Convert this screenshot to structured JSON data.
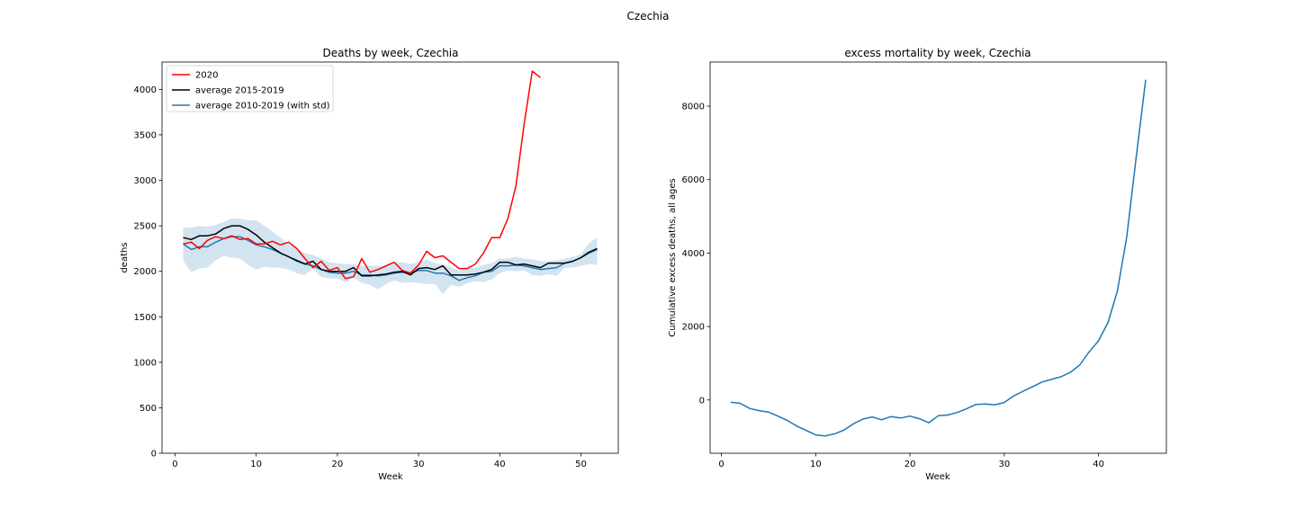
{
  "figure": {
    "suptitle": "Czechia"
  },
  "chart_data": [
    {
      "type": "line",
      "title": "Deaths by week, Czechia",
      "xlabel": "Week",
      "ylabel": "deaths",
      "xlim": [
        -1.6,
        54.6
      ],
      "ylim": [
        0,
        4300
      ],
      "xticks": [
        0,
        10,
        20,
        30,
        40,
        50
      ],
      "yticks": [
        0,
        500,
        1000,
        1500,
        2000,
        2500,
        3000,
        3500,
        4000
      ],
      "grid": false,
      "legend": {
        "position": "top-left",
        "entries": [
          "2020",
          "average 2015-2019",
          "average 2010-2019 (with std)"
        ]
      },
      "series": [
        {
          "name": "2020",
          "color": "#ff0000",
          "x": [
            1,
            2,
            3,
            4,
            5,
            6,
            7,
            8,
            9,
            10,
            11,
            12,
            13,
            14,
            15,
            16,
            17,
            18,
            19,
            20,
            21,
            22,
            23,
            24,
            25,
            26,
            27,
            28,
            29,
            30,
            31,
            32,
            33,
            34,
            35,
            36,
            37,
            38,
            39,
            40,
            41,
            42,
            43,
            44,
            45
          ],
          "y": [
            2300,
            2320,
            2250,
            2340,
            2380,
            2360,
            2390,
            2350,
            2360,
            2300,
            2300,
            2330,
            2290,
            2320,
            2250,
            2140,
            2040,
            2110,
            2010,
            2040,
            1920,
            1940,
            2140,
            1990,
            2020,
            2060,
            2100,
            2010,
            1980,
            2070,
            2220,
            2150,
            2170,
            2100,
            2030,
            2030,
            2080,
            2200,
            2370,
            2370,
            2580,
            2940,
            3620,
            4200,
            4130
          ]
        },
        {
          "name": "average 2015-2019",
          "color": "#000000",
          "x": [
            1,
            2,
            3,
            4,
            5,
            6,
            7,
            8,
            9,
            10,
            11,
            12,
            13,
            14,
            15,
            16,
            17,
            18,
            19,
            20,
            21,
            22,
            23,
            24,
            25,
            26,
            27,
            28,
            29,
            30,
            31,
            32,
            33,
            34,
            35,
            36,
            37,
            38,
            39,
            40,
            41,
            42,
            43,
            44,
            45,
            46,
            47,
            48,
            49,
            50,
            51,
            52
          ],
          "y": [
            2370,
            2350,
            2390,
            2390,
            2410,
            2470,
            2500,
            2500,
            2460,
            2400,
            2320,
            2260,
            2200,
            2160,
            2120,
            2080,
            2110,
            2020,
            2000,
            2000,
            2000,
            2040,
            1950,
            1950,
            1960,
            1970,
            1990,
            2000,
            1960,
            2030,
            2040,
            2020,
            2060,
            1960,
            1960,
            1960,
            1970,
            1990,
            2020,
            2100,
            2100,
            2070,
            2080,
            2060,
            2040,
            2090,
            2090,
            2090,
            2110,
            2150,
            2210,
            2250
          ]
        },
        {
          "name": "average 2010-2019 (with std)",
          "color": "#1f77b4",
          "x": [
            1,
            2,
            3,
            4,
            5,
            6,
            7,
            8,
            9,
            10,
            11,
            12,
            13,
            14,
            15,
            16,
            17,
            18,
            19,
            20,
            21,
            22,
            23,
            24,
            25,
            26,
            27,
            28,
            29,
            30,
            31,
            32,
            33,
            34,
            35,
            36,
            37,
            38,
            39,
            40,
            41,
            42,
            43,
            44,
            45,
            46,
            47,
            48,
            49,
            50,
            51,
            52
          ],
          "y": [
            2300,
            2240,
            2270,
            2270,
            2320,
            2360,
            2380,
            2380,
            2340,
            2290,
            2270,
            2240,
            2200,
            2160,
            2110,
            2080,
            2060,
            2020,
            1990,
            1980,
            1980,
            2000,
            1960,
            1960,
            1950,
            1960,
            1980,
            1990,
            1980,
            2010,
            2010,
            1980,
            1980,
            1950,
            1900,
            1930,
            1950,
            1990,
            2000,
            2060,
            2060,
            2070,
            2060,
            2040,
            2020,
            2030,
            2040,
            2090,
            2110,
            2150,
            2200,
            2240
          ],
          "band_upper": [
            2480,
            2480,
            2500,
            2490,
            2510,
            2540,
            2580,
            2580,
            2560,
            2560,
            2500,
            2440,
            2370,
            2300,
            2250,
            2200,
            2180,
            2140,
            2100,
            2090,
            2080,
            2080,
            2060,
            2060,
            2060,
            2060,
            2090,
            2100,
            2080,
            2100,
            2130,
            2090,
            2080,
            2040,
            2010,
            2040,
            2040,
            2070,
            2090,
            2140,
            2140,
            2160,
            2140,
            2130,
            2110,
            2110,
            2120,
            2140,
            2160,
            2190,
            2310,
            2370
          ],
          "band_lower": [
            2120,
            1990,
            2030,
            2040,
            2120,
            2170,
            2150,
            2140,
            2070,
            2020,
            2050,
            2040,
            2040,
            2020,
            1980,
            1960,
            2030,
            1940,
            1920,
            1920,
            1880,
            1930,
            1870,
            1850,
            1800,
            1860,
            1900,
            1870,
            1880,
            1870,
            1860,
            1860,
            1750,
            1850,
            1830,
            1870,
            1890,
            1880,
            1910,
            1980,
            2010,
            2000,
            2010,
            1960,
            1950,
            1970,
            1950,
            2040,
            2040,
            2060,
            2080,
            2070
          ]
        }
      ]
    },
    {
      "type": "line",
      "title": "excess mortality by week, Czechia",
      "xlabel": "Week",
      "ylabel": "Cumulative excess deaths, all ages",
      "xlim": [
        -1.2,
        47.2
      ],
      "ylim": [
        -1450,
        9200
      ],
      "xticks": [
        0,
        10,
        20,
        30,
        40
      ],
      "yticks": [
        0,
        2000,
        4000,
        6000,
        8000
      ],
      "grid": false,
      "series": [
        {
          "color": "#1f77b4",
          "x": [
            1,
            2,
            3,
            4,
            5,
            6,
            7,
            8,
            9,
            10,
            11,
            12,
            13,
            14,
            15,
            16,
            17,
            18,
            19,
            20,
            21,
            22,
            23,
            24,
            25,
            26,
            27,
            28,
            29,
            30,
            31,
            32,
            33,
            34,
            35,
            36,
            37,
            38,
            39,
            40,
            41,
            42,
            43,
            44,
            45
          ],
          "y": [
            -60,
            -90,
            -230,
            -290,
            -330,
            -440,
            -560,
            -710,
            -830,
            -950,
            -980,
            -920,
            -820,
            -650,
            -520,
            -460,
            -540,
            -450,
            -490,
            -440,
            -510,
            -620,
            -430,
            -410,
            -340,
            -240,
            -120,
            -110,
            -130,
            -70,
            110,
            240,
            360,
            490,
            560,
            630,
            750,
            950,
            1310,
            1610,
            2110,
            2960,
            4450,
            6620,
            8720
          ]
        }
      ]
    }
  ]
}
